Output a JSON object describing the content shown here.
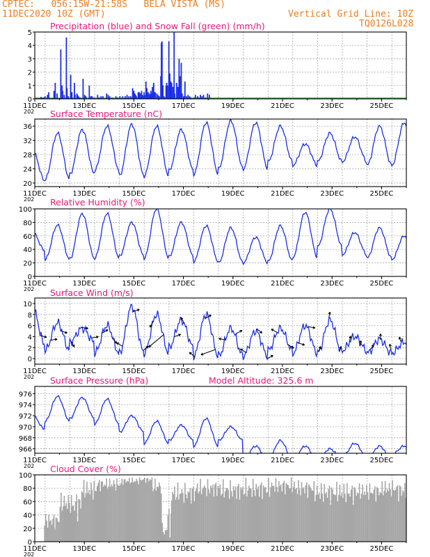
{
  "header": {
    "line1": "CPTEC:   056:15W-21:58S   BELA VISTA (MS)",
    "line2": "11DEC2020 10Z (GMT)",
    "grid_note": "Vertical Grid Line: 10Z",
    "model_id": "TQ0126L028"
  },
  "colors": {
    "header": "#f07c1c",
    "title": "#e8177a",
    "series": "#1a2ee8",
    "precip": "#1a2ee8",
    "snow": "#1fa01f",
    "cloud": "#a6a6a6",
    "wind_arrow": "#000000"
  },
  "chart_data": [
    {
      "id": "precip",
      "type": "bar",
      "title": "Precipitation (blue) and Snow Fall (green) (mm/h)",
      "ylim": [
        0,
        5
      ],
      "yticks": [
        0,
        1,
        2,
        3,
        4,
        5
      ],
      "xticks": [
        "11DEC",
        "13DEC",
        "15DEC",
        "17DEC",
        "19DEC",
        "21DEC",
        "23DEC",
        "25DEC"
      ],
      "x_note": "202",
      "bars": [
        [
          2.0,
          0.15
        ],
        [
          2.4,
          0.1
        ],
        [
          2.9,
          0.1
        ],
        [
          3.3,
          0.2
        ],
        [
          4.1,
          0.3
        ],
        [
          4.5,
          0.5
        ],
        [
          6.2,
          0.6
        ],
        [
          6.6,
          1.2
        ],
        [
          7.2,
          0.4
        ],
        [
          8.4,
          3.7
        ],
        [
          8.8,
          1.0
        ],
        [
          9.0,
          0.6
        ],
        [
          9.5,
          0.3
        ],
        [
          10.2,
          4.6
        ],
        [
          10.4,
          0.8
        ],
        [
          10.8,
          0.2
        ],
        [
          11.6,
          1.8
        ],
        [
          12.0,
          0.5
        ],
        [
          12.8,
          1.2
        ],
        [
          13.0,
          0.3
        ],
        [
          13.6,
          0.4
        ],
        [
          13.8,
          0.3
        ],
        [
          14.1,
          0.2
        ],
        [
          14.5,
          0.1
        ],
        [
          15.6,
          1.5
        ],
        [
          16.1,
          0.3
        ],
        [
          16.5,
          0.2
        ],
        [
          17.6,
          1.0
        ],
        [
          18.1,
          0.2
        ],
        [
          18.5,
          0.2
        ],
        [
          19.2,
          0.1
        ],
        [
          20.3,
          0.3
        ],
        [
          20.8,
          0.1
        ],
        [
          21.4,
          0.2
        ],
        [
          22.0,
          0.2
        ],
        [
          23.2,
          0.4
        ],
        [
          23.7,
          0.3
        ],
        [
          24.2,
          0.2
        ],
        [
          25.0,
          0.1
        ],
        [
          26.2,
          0.2
        ],
        [
          26.8,
          0.1
        ],
        [
          27.5,
          0.2
        ],
        [
          28.4,
          0.2
        ],
        [
          29.2,
          0.2
        ],
        [
          29.8,
          0.3
        ],
        [
          30.4,
          0.2
        ],
        [
          31.0,
          0.2
        ],
        [
          31.2,
          0.1
        ],
        [
          31.6,
          0.8
        ],
        [
          31.9,
          0.2
        ],
        [
          32.0,
          0.6
        ],
        [
          32.3,
          0.4
        ],
        [
          32.6,
          0.3
        ],
        [
          32.8,
          0.2
        ],
        [
          33.4,
          0.5
        ],
        [
          33.8,
          0.5
        ],
        [
          34.1,
          0.4
        ],
        [
          34.5,
          0.6
        ],
        [
          34.8,
          0.3
        ],
        [
          35.0,
          0.2
        ],
        [
          35.3,
          0.5
        ],
        [
          35.5,
          0.3
        ],
        [
          35.9,
          1.3
        ],
        [
          36.2,
          0.8
        ],
        [
          36.6,
          0.5
        ],
        [
          37.0,
          0.4
        ],
        [
          37.2,
          0.3
        ],
        [
          37.5,
          0.6
        ],
        [
          37.8,
          0.4
        ],
        [
          38.0,
          0.9
        ],
        [
          38.4,
          1.2
        ],
        [
          38.6,
          0.5
        ],
        [
          38.9,
          0.5
        ],
        [
          39.4,
          0.4
        ],
        [
          39.8,
          0.3
        ],
        [
          40.2,
          0.2
        ],
        [
          40.7,
          1.7
        ],
        [
          40.9,
          4.2
        ],
        [
          41.1,
          4.3
        ],
        [
          41.4,
          1.0
        ],
        [
          41.7,
          0.2
        ],
        [
          42.0,
          0.1
        ],
        [
          42.4,
          1.0
        ],
        [
          42.6,
          1.2
        ],
        [
          42.9,
          1.0
        ],
        [
          43.3,
          4.3
        ],
        [
          43.6,
          1.9
        ],
        [
          43.9,
          1.3
        ],
        [
          44.2,
          1.2
        ],
        [
          44.6,
          0.9
        ],
        [
          45.0,
          5.0
        ],
        [
          45.2,
          0.4
        ],
        [
          45.8,
          1.2
        ],
        [
          46.2,
          0.9
        ],
        [
          46.6,
          3.0
        ],
        [
          46.9,
          1.7
        ],
        [
          47.3,
          2.7
        ],
        [
          47.6,
          0.4
        ],
        [
          48.1,
          0.2
        ],
        [
          48.5,
          1.3
        ],
        [
          49.0,
          0.2
        ],
        [
          49.5,
          0.3
        ],
        [
          50.0,
          0.2
        ],
        [
          50.4,
          0.1
        ],
        [
          51.5,
          0.1
        ],
        [
          51.9,
          0.3
        ],
        [
          52.6,
          0.2
        ],
        [
          52.9,
          0.1
        ],
        [
          53.5,
          0.3
        ],
        [
          54.0,
          0.2
        ],
        [
          54.5,
          0.3
        ],
        [
          55.1,
          0.1
        ],
        [
          55.8,
          0.4
        ],
        [
          56.4,
          0.3
        ]
      ]
    },
    {
      "id": "temp",
      "type": "line",
      "title": "Surface Temperature (nC)",
      "ylim": [
        19,
        38
      ],
      "yticks": [
        20,
        24,
        28,
        32,
        36
      ],
      "xticks": [
        "11DEC",
        "13DEC",
        "15DEC",
        "17DEC",
        "19DEC",
        "21DEC",
        "23DEC",
        "25DEC"
      ],
      "x_note": "202",
      "lows": [
        20.5,
        21.0,
        22.5,
        23.5,
        22.0,
        22.0,
        23.5,
        22.5,
        24.0,
        24.0,
        26.0,
        25.0,
        26.0,
        26.0,
        25.0,
        25.0
      ],
      "highs": [
        29.0,
        34.0,
        35.0,
        36.0,
        36.5,
        36.0,
        35.0,
        37.0,
        37.5,
        37.0,
        36.0,
        31.0,
        34.0,
        33.0,
        36.0,
        37.0
      ]
    },
    {
      "id": "rh",
      "type": "line",
      "title": "Relative Humidity (%)",
      "ylim": [
        0,
        100
      ],
      "yticks": [
        0,
        20,
        40,
        60,
        80,
        100
      ],
      "xticks": [
        "11DEC",
        "13DEC",
        "15DEC",
        "17DEC",
        "19DEC",
        "21DEC",
        "23DEC",
        "25DEC"
      ],
      "x_note": "202",
      "lows": [
        38,
        25,
        26,
        27,
        30,
        27,
        29,
        22,
        20,
        20,
        22,
        28,
        44,
        32,
        27,
        25
      ],
      "highs": [
        65,
        76,
        93,
        93,
        80,
        100,
        80,
        75,
        72,
        58,
        75,
        95,
        100,
        65,
        72,
        60
      ]
    },
    {
      "id": "wind",
      "type": "line",
      "title": "Surface Wind (m/s)",
      "ylim": [
        -1,
        11
      ],
      "yticks": [
        0,
        2,
        4,
        6,
        8,
        10
      ],
      "xticks": [
        "11DEC",
        "13DEC",
        "15DEC",
        "17DEC",
        "19DEC",
        "21DEC",
        "23DEC",
        "25DEC"
      ],
      "x_note": "202",
      "lows": [
        2.5,
        1.5,
        3.0,
        1.0,
        1.0,
        1.0,
        2.0,
        0.5,
        0.5,
        0.5,
        1.5,
        1.0,
        1.0,
        1.5,
        1.0,
        1.0
      ],
      "highs": [
        9.0,
        6.5,
        5.5,
        6.0,
        9.5,
        8.0,
        7.0,
        8.0,
        5.5,
        5.0,
        5.5,
        6.0,
        7.0,
        4.0,
        3.5,
        3.0
      ],
      "arrow_angles": [
        110,
        80,
        110,
        150,
        100,
        80,
        60,
        140,
        300,
        70,
        50,
        210,
        230,
        70,
        330,
        310,
        60,
        250,
        280,
        60,
        300,
        130,
        60,
        300,
        120,
        110,
        100,
        20,
        10,
        20,
        10,
        10,
        40,
        0,
        350,
        340
      ],
      "arrow_lengths": [
        10,
        10,
        10,
        10,
        10,
        10,
        10,
        10,
        10,
        10,
        10,
        10,
        28,
        10,
        10,
        10,
        10,
        22,
        10,
        10,
        10,
        10,
        10,
        10,
        10,
        10,
        10,
        8,
        8,
        8,
        8,
        8,
        8,
        8,
        8,
        8
      ]
    },
    {
      "id": "pressure",
      "type": "line",
      "title": "Surface Pressure (hPa)",
      "subtitle": "Model Altitude: 325.6  m",
      "ylim": [
        965.2,
        977.3
      ],
      "yticks": [
        966,
        968,
        970,
        972,
        974,
        976
      ],
      "xticks": [
        "11DEC",
        "13DEC",
        "15DEC",
        "17DEC",
        "19DEC",
        "21DEC",
        "23DEC",
        "25DEC"
      ],
      "x_note": "202",
      "lows": [
        969.5,
        971.0,
        971.5,
        970.5,
        969.0,
        967.0,
        967.5,
        966.5,
        967.5,
        964.0,
        964.0,
        964.0,
        964.0,
        964.5,
        964.0,
        965.0
      ],
      "highs": [
        972.0,
        975.5,
        975.3,
        975.0,
        972.0,
        971.0,
        970.3,
        971.5,
        970.0,
        966.5,
        967.5,
        966.5,
        966.0,
        967.0,
        966.5,
        966.5
      ]
    },
    {
      "id": "cloud",
      "type": "bar",
      "title": "Cloud Cover (%)",
      "ylim": [
        0,
        100
      ],
      "yticks": [
        0,
        20,
        40,
        60,
        80,
        100
      ],
      "xticks": [
        "11DEC",
        "13DEC",
        "15DEC",
        "17DEC",
        "19DEC",
        "21DEC",
        "23DEC",
        "25DEC"
      ],
      "x_note": "202",
      "segments": [
        [
          0.0,
          3.0,
          0,
          0
        ],
        [
          3.0,
          8.0,
          18,
          45
        ],
        [
          8.0,
          12.0,
          40,
          75
        ],
        [
          12.0,
          15.0,
          30,
          80
        ],
        [
          15.0,
          20.0,
          60,
          95
        ],
        [
          20.0,
          28.0,
          75,
          97
        ],
        [
          28.0,
          34.0,
          85,
          97
        ],
        [
          34.0,
          38.0,
          88,
          98
        ],
        [
          38.0,
          41.0,
          70,
          96
        ],
        [
          41.0,
          42.5,
          2,
          30
        ],
        [
          42.5,
          44.0,
          5,
          60
        ],
        [
          44.0,
          52.0,
          55,
          90
        ],
        [
          52.0,
          60.0,
          65,
          95
        ],
        [
          60.0,
          68.0,
          60,
          94
        ],
        [
          68.0,
          76.0,
          62,
          96
        ],
        [
          76.0,
          84.0,
          70,
          97
        ],
        [
          84.0,
          90.0,
          65,
          95
        ],
        [
          90.0,
          96.0,
          55,
          92
        ],
        [
          96.0,
          104.0,
          55,
          92
        ],
        [
          104.0,
          112.0,
          60,
          90
        ],
        [
          112.0,
          117.0,
          65,
          94
        ],
        [
          117.0,
          122.0,
          60,
          93
        ]
      ]
    }
  ]
}
